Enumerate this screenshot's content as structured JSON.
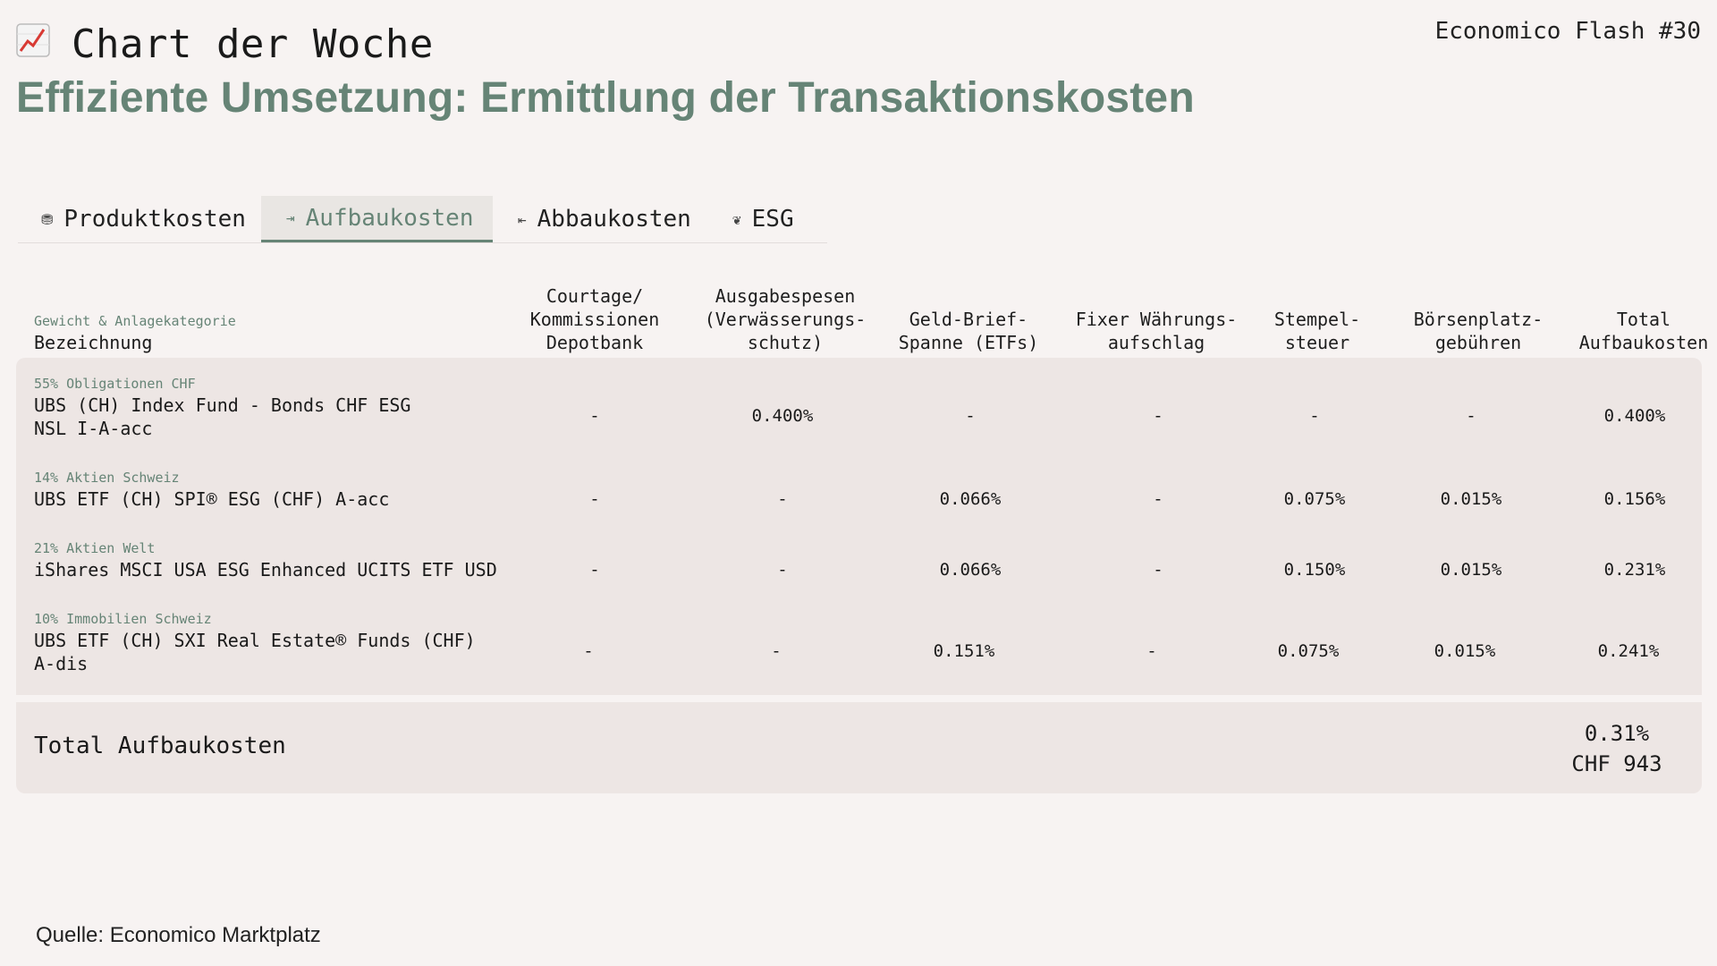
{
  "header": {
    "kicker": "Chart der Woche",
    "issue": "Economico Flash #30",
    "headline": "Effiziente Umsetzung: Ermittlung der Transaktionskosten",
    "icon": "chart-increasing-icon"
  },
  "tabs": [
    {
      "label": "Produktkosten",
      "icon": "coins-icon",
      "active": false
    },
    {
      "label": "Aufbaukosten",
      "icon": "sign-in-icon",
      "active": true
    },
    {
      "label": "Abbaukosten",
      "icon": "sign-out-icon",
      "active": false
    },
    {
      "label": "ESG",
      "icon": "leaf-icon",
      "active": false
    }
  ],
  "table": {
    "header_left_sub": "Gewicht & Anlagekategorie",
    "header_left_main": "Bezeichnung",
    "columns": [
      "Courtage/\nKommissionen\nDepotbank",
      "Ausgabespesen\n(Verwässerungs-\nschutz)",
      "Geld-Brief-\nSpanne (ETFs)",
      "Fixer Währungs-\naufschlag",
      "Stempel-\nsteuer",
      "Börsenplatz-\ngebühren",
      "Total\nAufbaukosten"
    ],
    "rows": [
      {
        "category": "55% Obligationen CHF",
        "name": "UBS (CH) Index Fund - Bonds CHF ESG NSL I-A-acc",
        "values": [
          "-",
          "0.400%",
          "-",
          "-",
          "-",
          "-",
          "0.400%"
        ]
      },
      {
        "category": "14% Aktien Schweiz",
        "name": "UBS ETF (CH) SPI® ESG (CHF) A-acc",
        "values": [
          "-",
          "-",
          "0.066%",
          "-",
          "0.075%",
          "0.015%",
          "0.156%"
        ]
      },
      {
        "category": "21% Aktien Welt",
        "name": "iShares MSCI USA ESG Enhanced UCITS ETF USD",
        "values": [
          "-",
          "-",
          "0.066%",
          "-",
          "0.150%",
          "0.015%",
          "0.231%"
        ]
      },
      {
        "category": "10% Immobilien Schweiz",
        "name": "UBS ETF (CH) SXI Real Estate® Funds (CHF) A-dis",
        "values": [
          "-",
          "-",
          "0.151%",
          "-",
          "0.075%",
          "0.015%",
          "0.241%"
        ]
      }
    ],
    "total_label": "Total Aufbaukosten",
    "total_percent": "0.31%",
    "total_amount": "CHF 943"
  },
  "source": "Quelle: Economico Marktplatz",
  "colors": {
    "accent": "#668476",
    "background": "#f7f3f2",
    "table_bg": "#ede6e4"
  }
}
